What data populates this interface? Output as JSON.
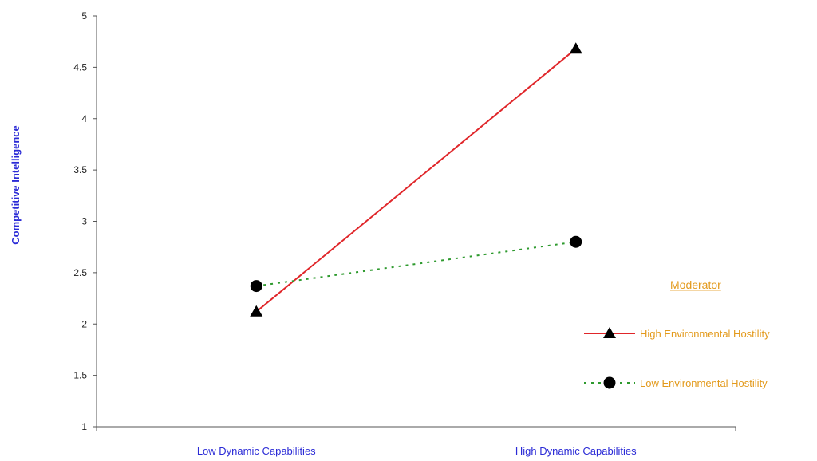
{
  "chart_data": {
    "type": "line",
    "categories": [
      "Low Dynamic Capabilities",
      "High Dynamic Capabilities"
    ],
    "ylabel": "Competitive Intelligence",
    "xlabel": "",
    "ylim": [
      1,
      5
    ],
    "yticks": [
      "1",
      "1.5",
      "2",
      "2.5",
      "3",
      "3.5",
      "4",
      "4.5",
      "5"
    ],
    "grid": false,
    "legend": {
      "title": "Moderator",
      "position": "right"
    },
    "series": [
      {
        "name": "High Environmental Hostility",
        "values": [
          2.12,
          4.68
        ],
        "color": "#e0262a",
        "line_style": "solid",
        "marker": "triangle"
      },
      {
        "name": "Low Environmental Hostility",
        "values": [
          2.37,
          2.8
        ],
        "color": "#2e9a2e",
        "line_style": "dotted",
        "marker": "circle"
      }
    ]
  }
}
